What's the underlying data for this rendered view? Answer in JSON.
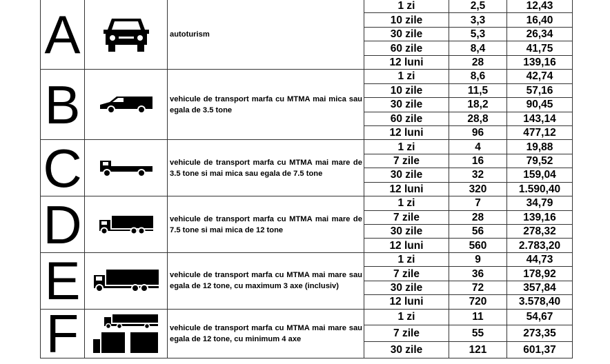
{
  "categories": [
    {
      "letter": "A",
      "icon": "car-icon",
      "description": "autoturism",
      "rows": [
        [
          "1 zi",
          "2,5",
          "12,43"
        ],
        [
          "10 zile",
          "3,3",
          "16,40"
        ],
        [
          "30 zile",
          "5,3",
          "26,34"
        ],
        [
          "60 zile",
          "8,4",
          "41,75"
        ],
        [
          "12 luni",
          "28",
          "139,16"
        ]
      ]
    },
    {
      "letter": "B",
      "icon": "van-icon",
      "description": "vehicule de transport marfa cu MTMA mai mica sau egala de 3.5 tone",
      "rows": [
        [
          "1 zi",
          "8,6",
          "42,74"
        ],
        [
          "10 zile",
          "11,5",
          "57,16"
        ],
        [
          "30 zile",
          "18,2",
          "90,45"
        ],
        [
          "60 zile",
          "28,8",
          "143,14"
        ],
        [
          "12 luni",
          "96",
          "477,12"
        ]
      ]
    },
    {
      "letter": "C",
      "icon": "flatbed-truck-icon",
      "description": "vehicule de transport marfa cu MTMA mai mare de 3.5 tone si mai mica sau egala de 7.5 tone",
      "rows": [
        [
          "1 zi",
          "4",
          "19,88"
        ],
        [
          "7 zile",
          "16",
          "79,52"
        ],
        [
          "30 zile",
          "32",
          "159,04"
        ],
        [
          "12 luni",
          "320",
          "1.590,40"
        ]
      ]
    },
    {
      "letter": "D",
      "icon": "box-truck-icon",
      "description": "vehicule de transport marfa cu MTMA mai mare de 7.5 tone si mai mica de 12 tone",
      "rows": [
        [
          "1 zi",
          "7",
          "34,79"
        ],
        [
          "7 zile",
          "28",
          "139,16"
        ],
        [
          "30 zile",
          "56",
          "278,32"
        ],
        [
          "12 luni",
          "560",
          "2.783,20"
        ]
      ]
    },
    {
      "letter": "E",
      "icon": "large-truck-icon",
      "description": "vehicule de transport marfa cu MTMA mai mare sau egala de 12 tone, cu maximum 3 axe (inclusiv)",
      "rows": [
        [
          "1 zi",
          "9",
          "44,73"
        ],
        [
          "7 zile",
          "36",
          "178,92"
        ],
        [
          "30 zile",
          "72",
          "357,84"
        ],
        [
          "12 luni",
          "720",
          "3.578,40"
        ]
      ]
    },
    {
      "letter": "F",
      "icon": "truck-trailer-icon",
      "description": "vehicule de transport marfa cu MTMA mai mare sau egala de 12 tone, cu minimum 4 axe",
      "rows": [
        [
          "1 zi",
          "11",
          "54,67"
        ],
        [
          "7 zile",
          "55",
          "273,35"
        ],
        [
          "30 zile",
          "121",
          "601,37"
        ]
      ]
    }
  ]
}
